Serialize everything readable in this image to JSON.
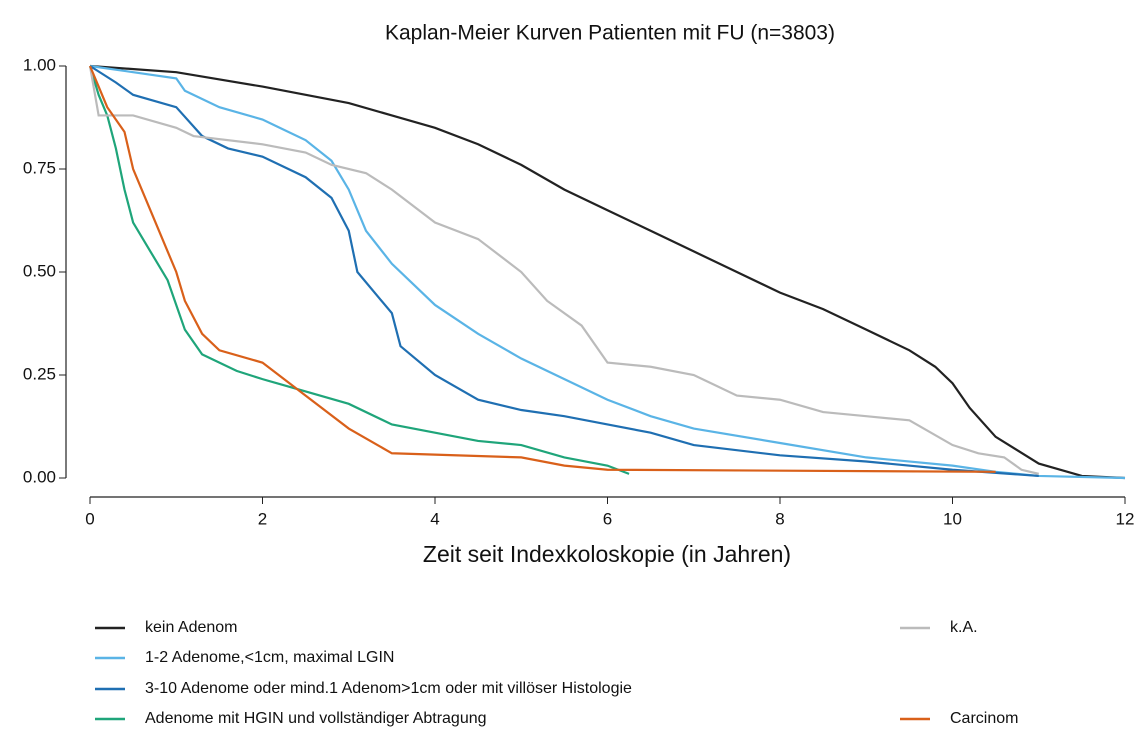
{
  "chart_data": {
    "type": "line",
    "title": "Kaplan-Meier Kurven Patienten mit FU (n=3803)",
    "x_label": "Zeit seit Indexkoloskopie (in Jahren)",
    "xlim": [
      0,
      12
    ],
    "xticks": [
      0,
      2,
      4,
      6,
      8,
      10,
      12
    ],
    "ylim": [
      0,
      1
    ],
    "yticks": [
      {
        "value": 0,
        "label": "0.00"
      },
      {
        "value": 0.25,
        "label": "0.25"
      },
      {
        "value": 0.5,
        "label": "0.50"
      },
      {
        "value": 0.75,
        "label": "0.75"
      },
      {
        "value": 1,
        "label": "1.00"
      }
    ],
    "series": [
      {
        "name": "kein Adenom",
        "color": "#222222",
        "x": [
          0,
          1,
          2,
          3,
          3.5,
          4,
          4.5,
          5,
          5.5,
          6,
          6.5,
          7,
          7.5,
          8,
          8.5,
          9,
          9.5,
          9.8,
          10,
          10.2,
          10.5,
          11,
          11.5,
          12
        ],
        "values": [
          1,
          0.985,
          0.95,
          0.91,
          0.88,
          0.85,
          0.81,
          0.76,
          0.7,
          0.65,
          0.6,
          0.55,
          0.5,
          0.45,
          0.41,
          0.36,
          0.31,
          0.27,
          0.23,
          0.17,
          0.1,
          0.035,
          0.005,
          0
        ]
      },
      {
        "name": "1-2 Adenome,<1cm, maximal LGIN",
        "color": "#5ab4e6",
        "x": [
          0,
          0.5,
          1,
          1.1,
          1.5,
          2,
          2.5,
          2.8,
          3,
          3.2,
          3.5,
          4,
          4.5,
          5,
          5.5,
          6,
          6.5,
          7,
          8,
          9,
          10,
          10.5,
          11,
          12
        ],
        "values": [
          1,
          0.985,
          0.97,
          0.94,
          0.9,
          0.87,
          0.82,
          0.77,
          0.7,
          0.6,
          0.52,
          0.42,
          0.35,
          0.29,
          0.24,
          0.19,
          0.15,
          0.12,
          0.085,
          0.05,
          0.03,
          0.015,
          0.005,
          0
        ]
      },
      {
        "name": "3-10 Adenome oder mind.1 Adenom>1cm oder mit villöser Histologie",
        "color": "#1f6fb2",
        "x": [
          0,
          0.3,
          0.5,
          1,
          1.3,
          1.6,
          2,
          2.5,
          2.8,
          3,
          3.1,
          3.5,
          3.6,
          4,
          4.5,
          5,
          5.5,
          6,
          6.5,
          7,
          8,
          9,
          10,
          11
        ],
        "values": [
          1,
          0.96,
          0.93,
          0.9,
          0.83,
          0.8,
          0.78,
          0.73,
          0.68,
          0.6,
          0.5,
          0.4,
          0.32,
          0.25,
          0.19,
          0.165,
          0.15,
          0.13,
          0.11,
          0.08,
          0.055,
          0.04,
          0.02,
          0.005
        ]
      },
      {
        "name": "Adenome mit HGIN und vollständiger Abtragung",
        "color": "#1fa57a",
        "x": [
          0,
          0.1,
          0.2,
          0.3,
          0.4,
          0.5,
          0.7,
          0.9,
          1,
          1.1,
          1.3,
          1.7,
          2,
          2.5,
          3,
          3.5,
          4,
          4.5,
          5,
          5.5,
          6,
          6.25
        ],
        "values": [
          1,
          0.93,
          0.88,
          0.8,
          0.7,
          0.62,
          0.55,
          0.48,
          0.42,
          0.36,
          0.3,
          0.26,
          0.24,
          0.21,
          0.18,
          0.13,
          0.11,
          0.09,
          0.08,
          0.05,
          0.03,
          0.01
        ]
      },
      {
        "name": "k.A.",
        "color": "#bbbbbb",
        "x": [
          0,
          0.1,
          0.5,
          1,
          1.2,
          2,
          2.5,
          2.8,
          3.2,
          3.5,
          4,
          4.5,
          5,
          5.3,
          5.7,
          6,
          6.5,
          7,
          7.5,
          8,
          8.5,
          9,
          9.5,
          10,
          10.3,
          10.6,
          10.8,
          11
        ],
        "values": [
          1,
          0.88,
          0.88,
          0.85,
          0.83,
          0.81,
          0.79,
          0.76,
          0.74,
          0.7,
          0.62,
          0.58,
          0.5,
          0.43,
          0.37,
          0.28,
          0.27,
          0.25,
          0.2,
          0.19,
          0.16,
          0.15,
          0.14,
          0.08,
          0.06,
          0.05,
          0.02,
          0.01
        ]
      },
      {
        "name": "Carcinom",
        "color": "#d9601a",
        "x": [
          0,
          0.1,
          0.2,
          0.4,
          0.5,
          0.7,
          0.9,
          1,
          1.1,
          1.3,
          1.5,
          2,
          2.5,
          3,
          3.5,
          5,
          5.5,
          6,
          10.5
        ],
        "values": [
          1,
          0.95,
          0.9,
          0.84,
          0.75,
          0.65,
          0.55,
          0.5,
          0.43,
          0.35,
          0.31,
          0.28,
          0.2,
          0.12,
          0.06,
          0.05,
          0.03,
          0.02,
          0.015
        ]
      }
    ]
  }
}
